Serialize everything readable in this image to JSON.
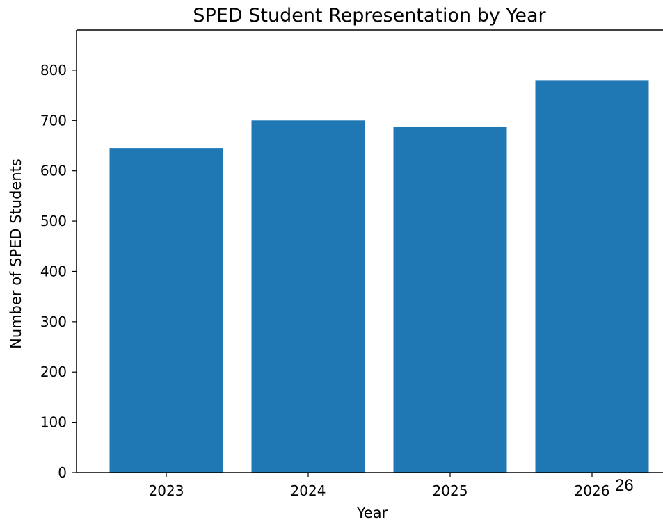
{
  "chart_data": {
    "type": "bar",
    "title": "SPED Student Representation by Year",
    "xlabel": "Year",
    "ylabel": "Number of SPED Students",
    "categories": [
      "2023",
      "2024",
      "2025",
      "2026"
    ],
    "values": [
      645,
      700,
      688,
      780
    ],
    "ylim": [
      0,
      880
    ],
    "yticks": [
      0,
      100,
      200,
      300,
      400,
      500,
      600,
      700,
      800
    ],
    "grid": false,
    "legend": "none",
    "bar_color": "#1f77b4"
  },
  "page": {
    "page_number": "26"
  }
}
